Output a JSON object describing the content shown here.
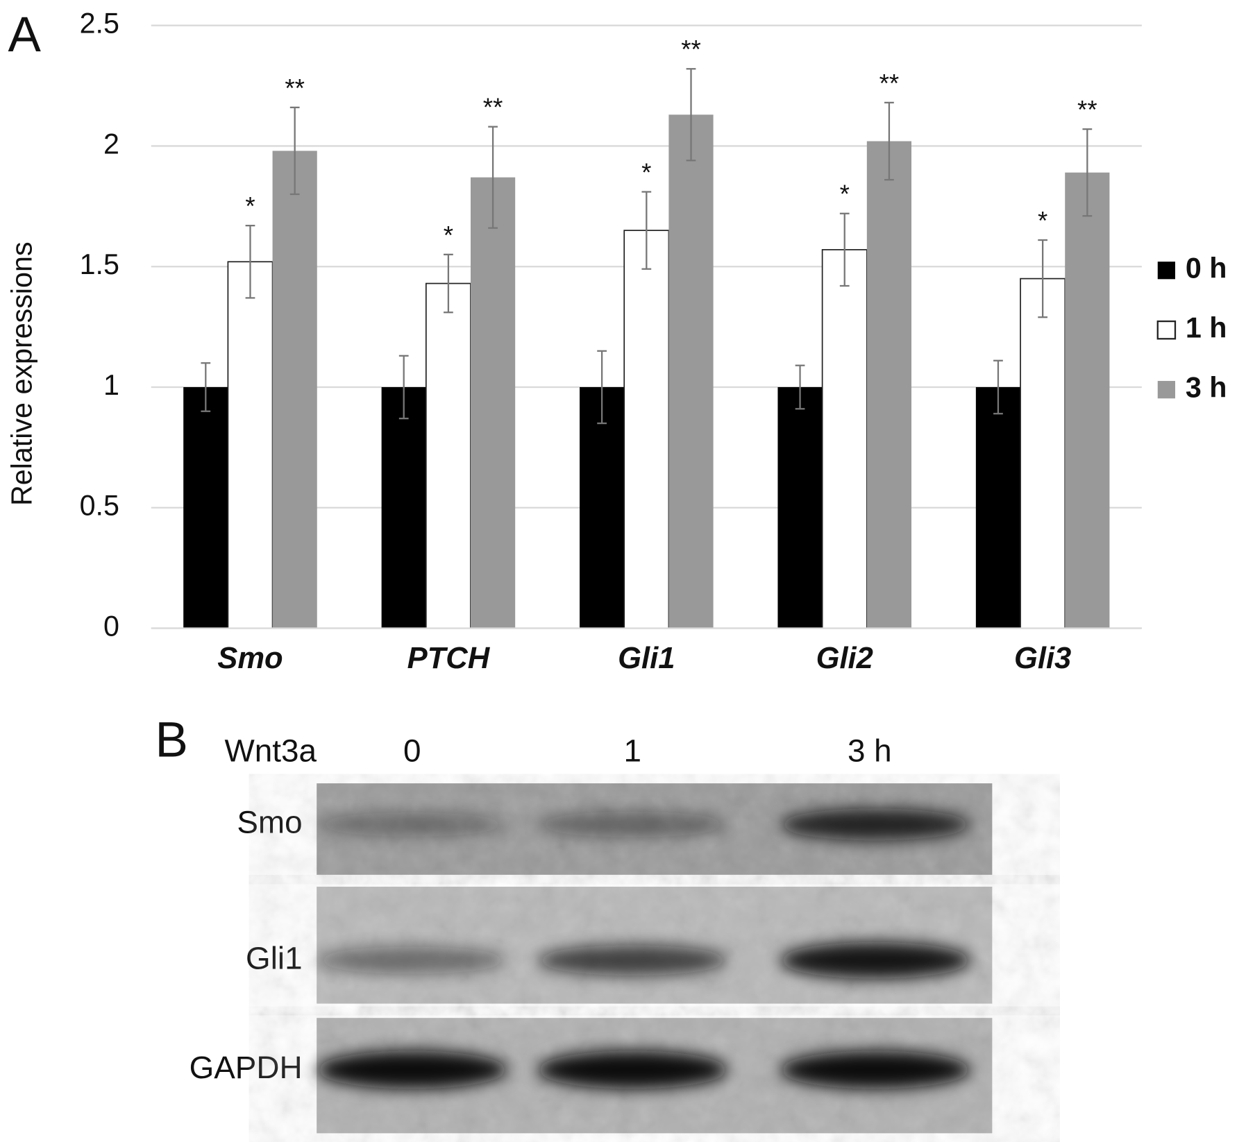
{
  "chart_data": {
    "type": "bar",
    "panel": "A",
    "ylabel": "Relative expressions",
    "categories": [
      "Smo",
      "PTCH",
      "Gli1",
      "Gli2",
      "Gli3"
    ],
    "series": [
      {
        "name": "0 h",
        "color": "#000000",
        "values": [
          1.0,
          1.0,
          1.0,
          1.0,
          1.0
        ],
        "errors": [
          0.1,
          0.13,
          0.15,
          0.09,
          0.11
        ]
      },
      {
        "name": "1 h",
        "color": "#ffffff",
        "values": [
          1.52,
          1.43,
          1.65,
          1.57,
          1.45
        ],
        "errors": [
          0.15,
          0.12,
          0.16,
          0.15,
          0.16
        ],
        "annotations": [
          "*",
          "*",
          "*",
          "*",
          "*"
        ]
      },
      {
        "name": "3 h",
        "color": "#999999",
        "values": [
          1.98,
          1.87,
          2.13,
          2.02,
          1.89
        ],
        "errors": [
          0.18,
          0.21,
          0.19,
          0.16,
          0.18
        ],
        "annotations": [
          "**",
          "**",
          "**",
          "**",
          "**"
        ]
      }
    ],
    "ylim": [
      0,
      2.5
    ],
    "yticks": [
      0,
      0.5,
      1,
      1.5,
      2,
      2.5
    ],
    "grid": true,
    "legend": "right"
  },
  "blot": {
    "panel": "B",
    "treatment": "Wnt3a",
    "lanes": [
      "0",
      "1",
      "3 h"
    ],
    "rows": [
      "Smo",
      "Gli1",
      "GAPDH"
    ]
  }
}
